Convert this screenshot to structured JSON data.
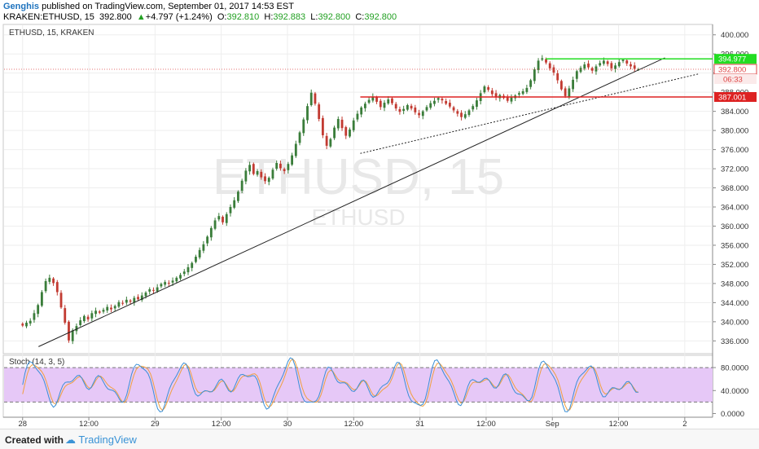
{
  "header": {
    "author": "Genghis",
    "published_text": "published on TradingView.com, September 01, 2017 14:53 EST",
    "symbol_interval": "KRAKEN:ETHUSD, 15",
    "last_price": "392.800",
    "change": "+4.797 (+1.24%)",
    "open_label": "O:",
    "open": "392.810",
    "high_label": "H:",
    "high": "392.883",
    "low_label": "L:",
    "low": "392.800",
    "close_label": "C:",
    "close": "392.800"
  },
  "pane_label": "ETHUSD, 15, KRAKEN",
  "watermark": {
    "big": "ETHUSD, 15",
    "small": "ETHUSD"
  },
  "colors": {
    "up": "#3a7d3a",
    "down": "#c23b32",
    "resistance": "#22dd22",
    "support": "#dd2222",
    "price_marker": "#dd4444",
    "stoch_fill": "#e6c8f7",
    "k_line": "#3a8fd6",
    "d_line": "#f0a040"
  },
  "chart_data": {
    "type": "candlestick",
    "price_ylim": [
      333.5,
      402.0
    ],
    "price_ticks": [
      "400.000",
      "396.000",
      "392.000",
      "388.000",
      "384.000",
      "380.000",
      "376.000",
      "372.000",
      "368.000",
      "364.000",
      "360.000",
      "356.000",
      "352.000",
      "348.000",
      "344.000",
      "340.000",
      "336.000"
    ],
    "x_ticks": [
      "28",
      "12:00",
      "29",
      "12:00",
      "30",
      "12:00",
      "31",
      "12:00",
      "Sep",
      "12:00",
      "2"
    ],
    "x_tick_pos": [
      0,
      0.5,
      1,
      1.5,
      2,
      2.5,
      3,
      3.5,
      4,
      4.5,
      5
    ],
    "x_range_days": [
      -0.14,
      5.21
    ],
    "candles_close": [
      339.2,
      339.8,
      340.2,
      341.8,
      343.5,
      346.2,
      348.5,
      349.2,
      348.1,
      346.2,
      343.0,
      339.8,
      336.1,
      338.2,
      339.1,
      340.3,
      341.2,
      340.5,
      341.8,
      342.3,
      341.9,
      342.5,
      343.1,
      342.6,
      343.3,
      344.1,
      343.8,
      344.6,
      344.2,
      345.0,
      344.7,
      345.5,
      346.1,
      346.8,
      346.5,
      347.2,
      347.9,
      348.3,
      348.0,
      348.6,
      349.2,
      349.8,
      350.5,
      351.4,
      352.3,
      353.6,
      355.0,
      356.2,
      357.8,
      359.6,
      361.2,
      362.1,
      360.8,
      362.5,
      364.0,
      365.4,
      367.2,
      369.5,
      371.6,
      372.8,
      370.9,
      371.5,
      370.2,
      369.4,
      370.1,
      371.8,
      373.2,
      372.1,
      371.5,
      373.0,
      374.8,
      377.2,
      379.6,
      382.3,
      385.1,
      387.9,
      385.6,
      382.4,
      379.0,
      376.8,
      378.2,
      380.6,
      382.4,
      380.5,
      378.9,
      380.2,
      382.1,
      383.5,
      384.8,
      385.6,
      386.4,
      387.1,
      386.0,
      384.9,
      385.8,
      386.5,
      385.7,
      384.6,
      383.9,
      384.5,
      385.3,
      384.6,
      383.8,
      383.2,
      384.0,
      384.9,
      385.7,
      386.2,
      386.8,
      386.3,
      385.6,
      385.0,
      384.2,
      383.5,
      382.8,
      383.4,
      384.2,
      385.1,
      386.3,
      387.8,
      389.2,
      388.5,
      387.6,
      386.9,
      387.4,
      386.8,
      386.2,
      386.9,
      387.3,
      387.8,
      388.2,
      388.9,
      390.5,
      392.8,
      394.6,
      395.1,
      394.2,
      393.0,
      392.1,
      390.5,
      388.6,
      387.2,
      388.8,
      390.6,
      392.4,
      393.1,
      393.8,
      393.2,
      392.5,
      393.4,
      394.1,
      394.6,
      393.9,
      393.0,
      393.6,
      394.3,
      394.8,
      394.0,
      393.4,
      392.9,
      392.8
    ],
    "resistance": 394.977,
    "support": 387.001,
    "price_marker": 392.8,
    "countdown": "06:33",
    "stoch_label": "Stoch (14, 3, 5)",
    "stoch_ticks": [
      "80.0000",
      "40.0000",
      "0.0000"
    ],
    "stoch_ylim": [
      -5,
      100
    ],
    "stoch_bands": [
      20,
      80
    ]
  },
  "footer": {
    "created_with": "Created with",
    "brand": "TradingView"
  }
}
